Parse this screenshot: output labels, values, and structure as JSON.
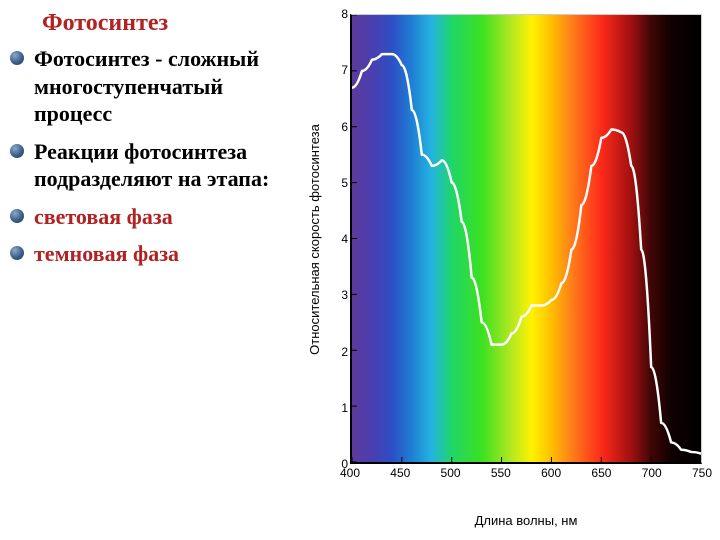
{
  "title": "Фотосинтез",
  "title_color": "#b22222",
  "title_fontsize": 24,
  "bullets": [
    {
      "text": "Фотосинтез - сложный многоступенчатый процесс",
      "color": "#000000"
    },
    {
      "text": "Реакции фотосинтеза подразделяют на этапа:",
      "color": "#000000"
    },
    {
      "text": " световая фаза",
      "color": "#b22222"
    },
    {
      "text": " темновая фаза",
      "color": "#b22222"
    }
  ],
  "bullet_fontsize": 22,
  "bullet_marker_color": "#3b5f88",
  "chart": {
    "type": "line-on-spectrum",
    "xlabel": "Длина волны, нм",
    "ylabel": "Относительная скорость фотосинтеза",
    "label_fontsize": 13,
    "tick_fontsize": 12,
    "xlim": [
      400,
      750
    ],
    "ylim": [
      0,
      8
    ],
    "xticks": [
      400,
      450,
      500,
      550,
      600,
      650,
      700,
      750
    ],
    "yticks": [
      0,
      1,
      2,
      3,
      4,
      5,
      6,
      7,
      8
    ],
    "line_color": "#ffffff",
    "line_width": 2.5,
    "curve_points": [
      [
        400,
        6.7
      ],
      [
        410,
        7.0
      ],
      [
        420,
        7.2
      ],
      [
        430,
        7.3
      ],
      [
        440,
        7.3
      ],
      [
        450,
        7.1
      ],
      [
        460,
        6.3
      ],
      [
        470,
        5.5
      ],
      [
        480,
        5.3
      ],
      [
        490,
        5.4
      ],
      [
        500,
        5.0
      ],
      [
        510,
        4.3
      ],
      [
        520,
        3.3
      ],
      [
        530,
        2.5
      ],
      [
        540,
        2.1
      ],
      [
        550,
        2.1
      ],
      [
        560,
        2.3
      ],
      [
        570,
        2.6
      ],
      [
        580,
        2.8
      ],
      [
        590,
        2.8
      ],
      [
        600,
        2.9
      ],
      [
        610,
        3.2
      ],
      [
        620,
        3.8
      ],
      [
        630,
        4.6
      ],
      [
        640,
        5.3
      ],
      [
        650,
        5.8
      ],
      [
        660,
        5.95
      ],
      [
        670,
        5.9
      ],
      [
        680,
        5.3
      ],
      [
        690,
        3.8
      ],
      [
        700,
        1.7
      ],
      [
        710,
        0.7
      ],
      [
        720,
        0.35
      ],
      [
        730,
        0.22
      ],
      [
        740,
        0.18
      ],
      [
        750,
        0.15
      ]
    ],
    "spectrum_stops": [
      [
        400,
        "#5e3a9a"
      ],
      [
        420,
        "#4a3fb0"
      ],
      [
        440,
        "#2d4ec4"
      ],
      [
        460,
        "#1f7fd4"
      ],
      [
        480,
        "#24b4e0"
      ],
      [
        500,
        "#1fd66a"
      ],
      [
        530,
        "#3be020"
      ],
      [
        560,
        "#b4e820"
      ],
      [
        580,
        "#fff200"
      ],
      [
        600,
        "#ffbf00"
      ],
      [
        620,
        "#ff7f1a"
      ],
      [
        650,
        "#ff2a1a"
      ],
      [
        680,
        "#a01010"
      ],
      [
        700,
        "#400606"
      ],
      [
        720,
        "#100101"
      ],
      [
        750,
        "#000000"
      ]
    ],
    "background_color": "#ffffff",
    "axis_color": "#000000"
  }
}
